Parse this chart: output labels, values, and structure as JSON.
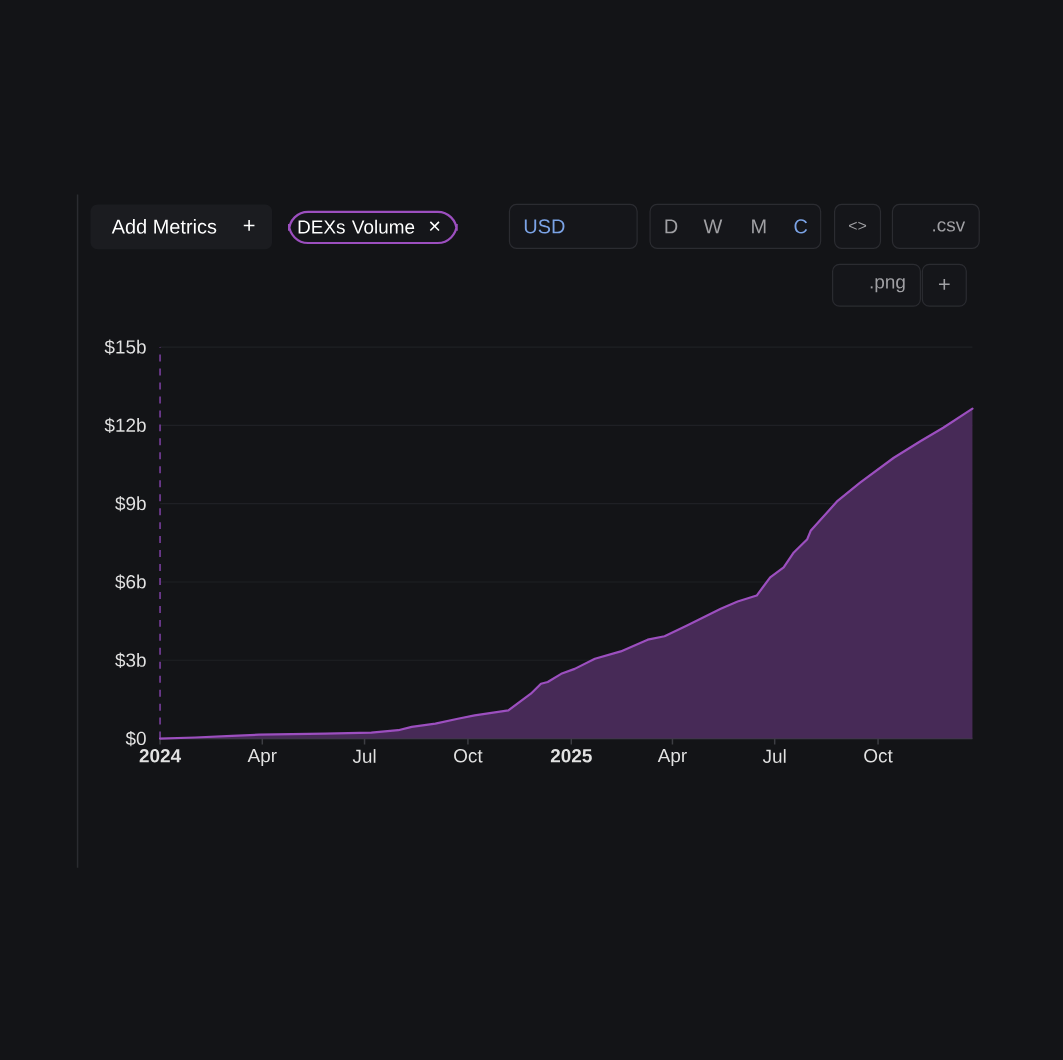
{
  "chart_data": {
    "type": "area",
    "x": [
      "2024-01-01",
      "2024-02-01",
      "2024-03-05",
      "2024-03-29",
      "2024-05-27",
      "2024-07-07",
      "2024-07-31",
      "2024-08-12",
      "2024-09-02",
      "2024-09-22",
      "2024-10-07",
      "2024-11-06",
      "2024-11-20",
      "2024-11-26",
      "2024-12-05",
      "2024-12-11",
      "2024-12-23",
      "2025-01-04",
      "2025-01-22",
      "2025-02-14",
      "2025-03-10",
      "2025-03-25",
      "2025-04-14",
      "2025-05-14",
      "2025-05-29",
      "2025-06-15",
      "2025-06-27",
      "2025-07-09",
      "2025-07-18",
      "2025-07-30",
      "2025-08-02",
      "2025-08-26",
      "2025-09-15",
      "2025-10-15",
      "2025-11-08",
      "2025-11-28",
      "2025-12-24"
    ],
    "series": [
      {
        "name": "DEXs Volume",
        "color": "#9c4fbf",
        "values": [
          0,
          0.04,
          0.1,
          0.15,
          0.19,
          0.23,
          0.32,
          0.45,
          0.57,
          0.76,
          0.89,
          1.08,
          1.53,
          1.72,
          2.1,
          2.17,
          2.48,
          2.67,
          3.06,
          3.34,
          3.79,
          3.92,
          4.33,
          4.97,
          5.25,
          5.48,
          6.18,
          6.56,
          7.13,
          7.64,
          7.96,
          9.11,
          9.81,
          10.76,
          11.4,
          11.91,
          12.64
        ]
      }
    ],
    "xlim": [
      "2024-01-01",
      "2025-12-24"
    ],
    "xticks": [
      {
        "value": "2024-01-01",
        "label": "2024"
      },
      {
        "value": "2024-04-01",
        "label": "Apr"
      },
      {
        "value": "2024-07-01",
        "label": "Jul"
      },
      {
        "value": "2024-10-01",
        "label": "Oct"
      },
      {
        "value": "2025-01-01",
        "label": "2025"
      },
      {
        "value": "2025-04-01",
        "label": "Apr"
      },
      {
        "value": "2025-07-01",
        "label": "Jul"
      },
      {
        "value": "2025-10-01",
        "label": "Oct"
      }
    ],
    "ylim": [
      0,
      15
    ],
    "yticks": [
      {
        "value": 0,
        "label": "$0"
      },
      {
        "value": 3,
        "label": "$3b"
      },
      {
        "value": 6,
        "label": "$6b"
      },
      {
        "value": 9,
        "label": "$9b"
      },
      {
        "value": 12,
        "label": "$12b"
      },
      {
        "value": 15,
        "label": "$15b"
      }
    ],
    "grid": "y",
    "legend": "top left",
    "ref_lines": [
      {
        "axis": "x",
        "value": "2024-01-01",
        "color": "#7a3e9e",
        "line_style": "dashed"
      }
    ],
    "annotations": [
      "Add Metrics",
      "+",
      "×",
      "USD",
      "D",
      "W",
      "M",
      "C",
      "<>",
      ".csv",
      ".png",
      "+"
    ]
  }
}
